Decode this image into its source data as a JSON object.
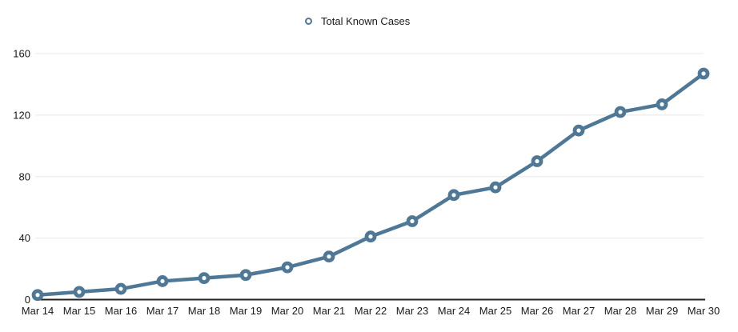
{
  "legend": {
    "label": "Total Known Cases"
  },
  "colors": {
    "line": "#4e7896",
    "marker_fill": "#ffffff",
    "grid": "#e8e8e8",
    "axis": "#222222",
    "text": "#1a1a1a",
    "background": "#ffffff"
  },
  "chart_data": {
    "type": "line",
    "title": "",
    "categories": [
      "Mar 14",
      "Mar 15",
      "Mar 16",
      "Mar 17",
      "Mar 18",
      "Mar 19",
      "Mar 20",
      "Mar 21",
      "Mar 22",
      "Mar 23",
      "Mar 24",
      "Mar 25",
      "Mar 26",
      "Mar 27",
      "Mar 28",
      "Mar 29",
      "Mar 30"
    ],
    "series": [
      {
        "name": "Total Known Cases",
        "values": [
          3,
          5,
          7,
          12,
          14,
          16,
          21,
          28,
          41,
          51,
          68,
          73,
          90,
          110,
          122,
          127,
          147
        ]
      }
    ],
    "xlabel": "",
    "ylabel": "",
    "ylim": [
      0,
      160
    ],
    "yticks": [
      0,
      40,
      80,
      120,
      160
    ],
    "grid": true,
    "legend_position": "top-center",
    "marker": "open-circle"
  }
}
